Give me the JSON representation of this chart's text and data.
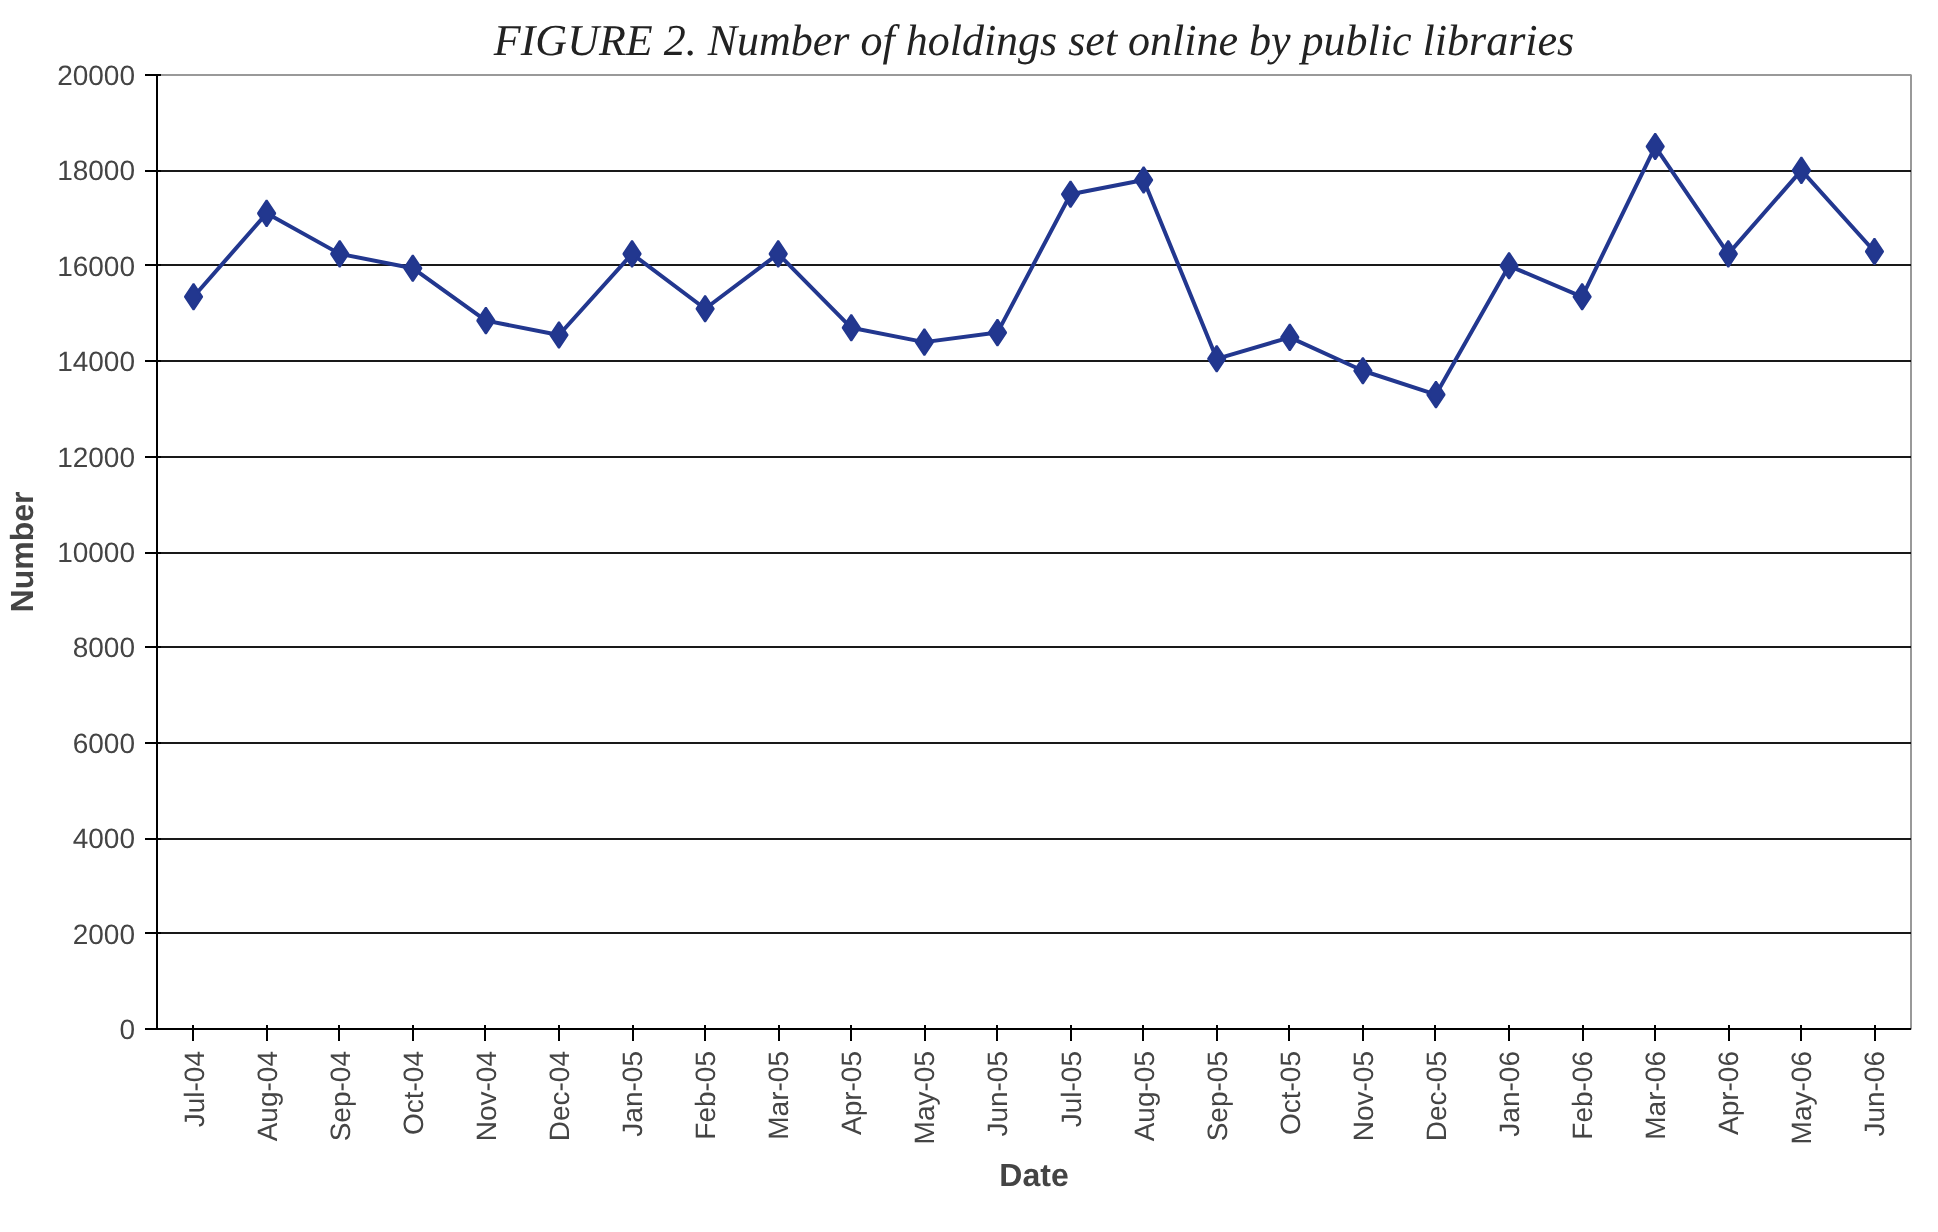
{
  "chart_data": {
    "type": "line",
    "title": "FIGURE 2. Number of holdings set online by public libraries",
    "xlabel": "Date",
    "ylabel": "Number",
    "categories": [
      "Jul-04",
      "Aug-04",
      "Sep-04",
      "Oct-04",
      "Nov-04",
      "Dec-04",
      "Jan-05",
      "Feb-05",
      "Mar-05",
      "Apr-05",
      "May-05",
      "Jun-05",
      "Jul-05",
      "Aug-05",
      "Sep-05",
      "Oct-05",
      "Nov-05",
      "Dec-05",
      "Jan-06",
      "Feb-06",
      "Mar-06",
      "Apr-06",
      "May-06",
      "Jun-06"
    ],
    "series": [
      {
        "color": "#22378f",
        "values": [
          15350,
          17100,
          16250,
          15950,
          14850,
          14550,
          16250,
          15100,
          16250,
          14700,
          14400,
          14600,
          17500,
          17800,
          14050,
          14500,
          13800,
          13300,
          16000,
          15350,
          18500,
          16250,
          18000,
          16300
        ]
      }
    ],
    "ylim": [
      0,
      20000
    ],
    "yticks": [
      0,
      2000,
      4000,
      6000,
      8000,
      10000,
      12000,
      14000,
      16000,
      18000,
      20000
    ],
    "grid": "y",
    "marker": "diamond",
    "line_style": "solid"
  }
}
